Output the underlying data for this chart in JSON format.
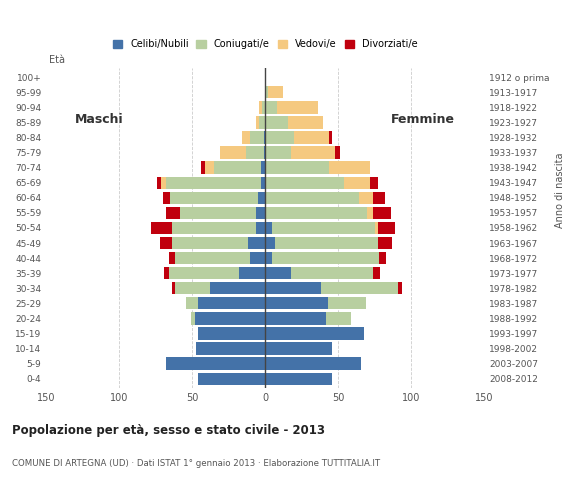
{
  "age_groups": [
    "100+",
    "95-99",
    "90-94",
    "85-89",
    "80-84",
    "75-79",
    "70-74",
    "65-69",
    "60-64",
    "55-59",
    "50-54",
    "45-49",
    "40-44",
    "35-39",
    "30-34",
    "25-29",
    "20-24",
    "15-19",
    "10-14",
    "5-9",
    "0-4"
  ],
  "birth_years": [
    "1912 o prima",
    "1913-1917",
    "1918-1922",
    "1923-1927",
    "1928-1932",
    "1933-1937",
    "1938-1942",
    "1943-1947",
    "1948-1952",
    "1953-1957",
    "1958-1962",
    "1963-1967",
    "1968-1972",
    "1973-1977",
    "1978-1982",
    "1983-1987",
    "1988-1992",
    "1993-1997",
    "1998-2002",
    "2003-2007",
    "2008-2012"
  ],
  "males": {
    "celibi": [
      0,
      0,
      0,
      0,
      1,
      1,
      3,
      3,
      5,
      6,
      6,
      12,
      10,
      18,
      38,
      46,
      48,
      46,
      47,
      68,
      46
    ],
    "coniugati": [
      0,
      0,
      2,
      4,
      9,
      12,
      32,
      65,
      60,
      52,
      58,
      52,
      52,
      48,
      24,
      8,
      3,
      0,
      0,
      0,
      0
    ],
    "vedovi": [
      0,
      0,
      2,
      2,
      6,
      18,
      6,
      3,
      0,
      0,
      0,
      0,
      0,
      0,
      0,
      0,
      0,
      0,
      0,
      0,
      0
    ],
    "divorziati": [
      0,
      0,
      0,
      0,
      0,
      0,
      3,
      3,
      5,
      10,
      14,
      8,
      4,
      3,
      2,
      0,
      0,
      0,
      0,
      0,
      0
    ]
  },
  "females": {
    "nubili": [
      0,
      0,
      0,
      0,
      0,
      0,
      0,
      0,
      0,
      0,
      5,
      7,
      5,
      18,
      38,
      43,
      42,
      68,
      46,
      66,
      46
    ],
    "coniugate": [
      0,
      2,
      8,
      16,
      20,
      18,
      44,
      54,
      64,
      70,
      70,
      70,
      73,
      56,
      53,
      26,
      17,
      0,
      0,
      0,
      0
    ],
    "vedove": [
      0,
      10,
      28,
      24,
      24,
      30,
      28,
      18,
      10,
      4,
      2,
      0,
      0,
      0,
      0,
      0,
      0,
      0,
      0,
      0,
      0
    ],
    "divorziate": [
      0,
      0,
      0,
      0,
      2,
      3,
      0,
      5,
      8,
      12,
      12,
      10,
      5,
      5,
      3,
      0,
      0,
      0,
      0,
      0,
      0
    ]
  },
  "colors": {
    "celibi": "#4472a8",
    "coniugati": "#b8cfa0",
    "vedovi": "#f5c980",
    "divorziati": "#c0000e"
  },
  "xlim": 150,
  "title": "Popolazione per età, sesso e stato civile - 2013",
  "subtitle": "COMUNE DI ARTEGNA (UD) · Dati ISTAT 1° gennaio 2013 · Elaborazione TUTTITALIA.IT",
  "ylabel_left": "Età",
  "ylabel_right": "Anno di nascita",
  "legend_labels": [
    "Celibi/Nubili",
    "Coniugati/e",
    "Vedovi/e",
    "Divorziati/e"
  ]
}
